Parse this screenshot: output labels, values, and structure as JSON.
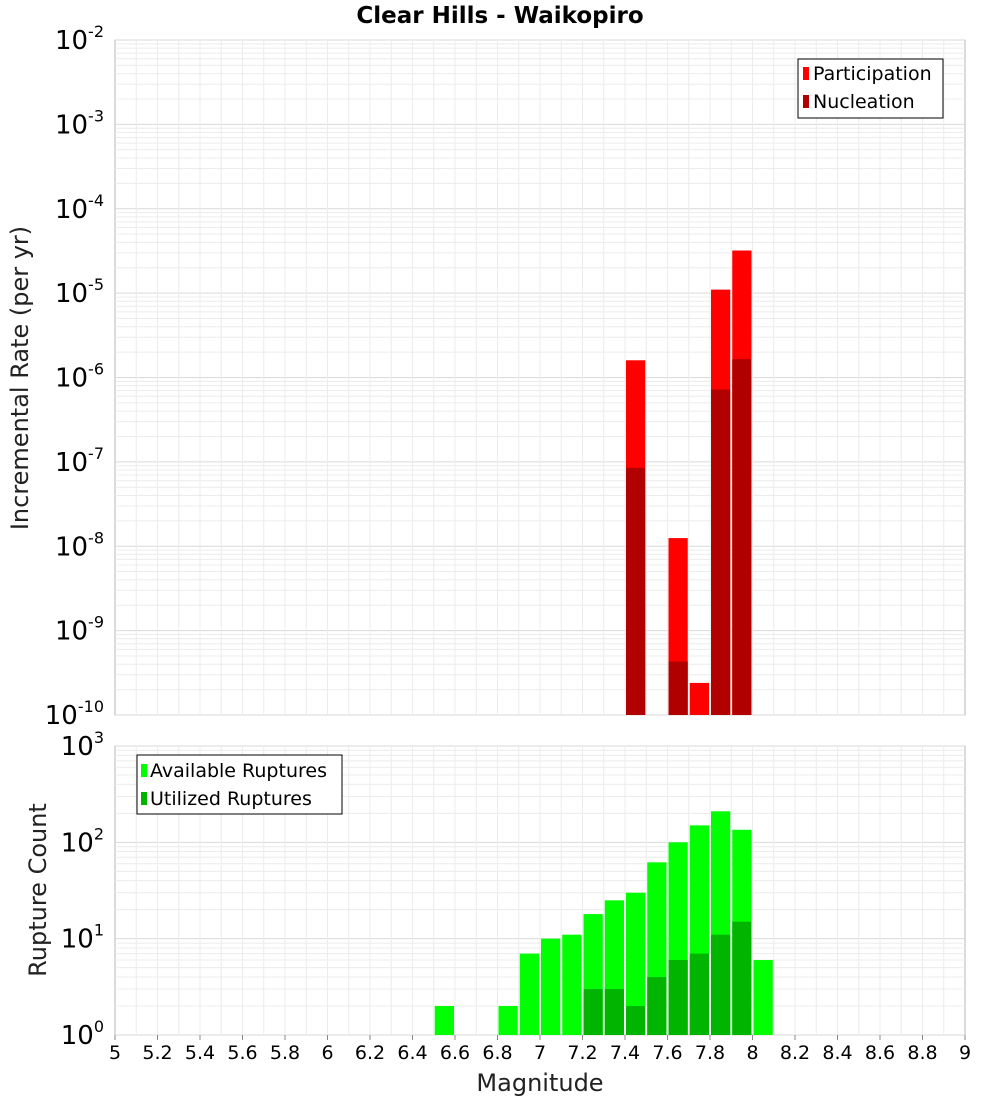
{
  "chart_data": [
    {
      "type": "bar",
      "title": "Clear Hills - Waikopiro",
      "xlabel": "",
      "ylabel": "Incremental Rate (per yr)",
      "yscale": "log",
      "ylim_exp": [
        -10,
        -2
      ],
      "ytick_exps": [
        "-10",
        "-9",
        "-8",
        "-7",
        "-6",
        "-5",
        "-4",
        "-3",
        "-2"
      ],
      "xlim": [
        5,
        9
      ],
      "grid": true,
      "legend_placement": "top-right",
      "bin_width": 0.1,
      "series": [
        {
          "name": "Participation",
          "color": "#ff0000",
          "x": [
            7.45,
            7.65,
            7.75,
            7.85,
            7.95
          ],
          "values": [
            1.6e-06,
            1.25e-08,
            2.4e-10,
            1.1e-05,
            3.2e-05
          ]
        },
        {
          "name": "Nucleation",
          "color": "#b00000",
          "x": [
            7.45,
            7.65,
            7.85,
            7.95
          ],
          "values": [
            8.5e-08,
            4.3e-10,
            7.2e-07,
            1.65e-06
          ]
        }
      ]
    },
    {
      "type": "bar",
      "title": "",
      "xlabel": "Magnitude",
      "ylabel": "Rupture Count",
      "yscale": "log",
      "ylim_exp": [
        0,
        3
      ],
      "ytick_exps": [
        "0",
        "1",
        "2",
        "3"
      ],
      "xlim": [
        5,
        9
      ],
      "xticks": [
        "5",
        "5.2",
        "5.4",
        "5.6",
        "5.8",
        "6",
        "6.2",
        "6.4",
        "6.6",
        "6.8",
        "7",
        "7.2",
        "7.4",
        "7.6",
        "7.8",
        "8",
        "8.2",
        "8.4",
        "8.6",
        "8.8",
        "9"
      ],
      "grid": true,
      "legend_placement": "top-left",
      "bin_width": 0.1,
      "series": [
        {
          "name": "Available Ruptures",
          "color": "#00ff00",
          "x": [
            6.55,
            6.65,
            6.85,
            6.95,
            7.05,
            7.15,
            7.25,
            7.35,
            7.45,
            7.55,
            7.65,
            7.75,
            7.85,
            7.95,
            8.05
          ],
          "values": [
            2,
            1,
            2,
            7,
            10,
            11,
            18,
            25,
            30,
            62,
            100,
            150,
            210,
            135,
            6
          ]
        },
        {
          "name": "Utilized Ruptures",
          "color": "#00b400",
          "x": [
            7.05,
            7.25,
            7.35,
            7.45,
            7.55,
            7.65,
            7.75,
            7.85,
            7.95,
            8.05
          ],
          "values": [
            1,
            3,
            3,
            2,
            4,
            6,
            7,
            11,
            15,
            1
          ]
        }
      ]
    }
  ]
}
